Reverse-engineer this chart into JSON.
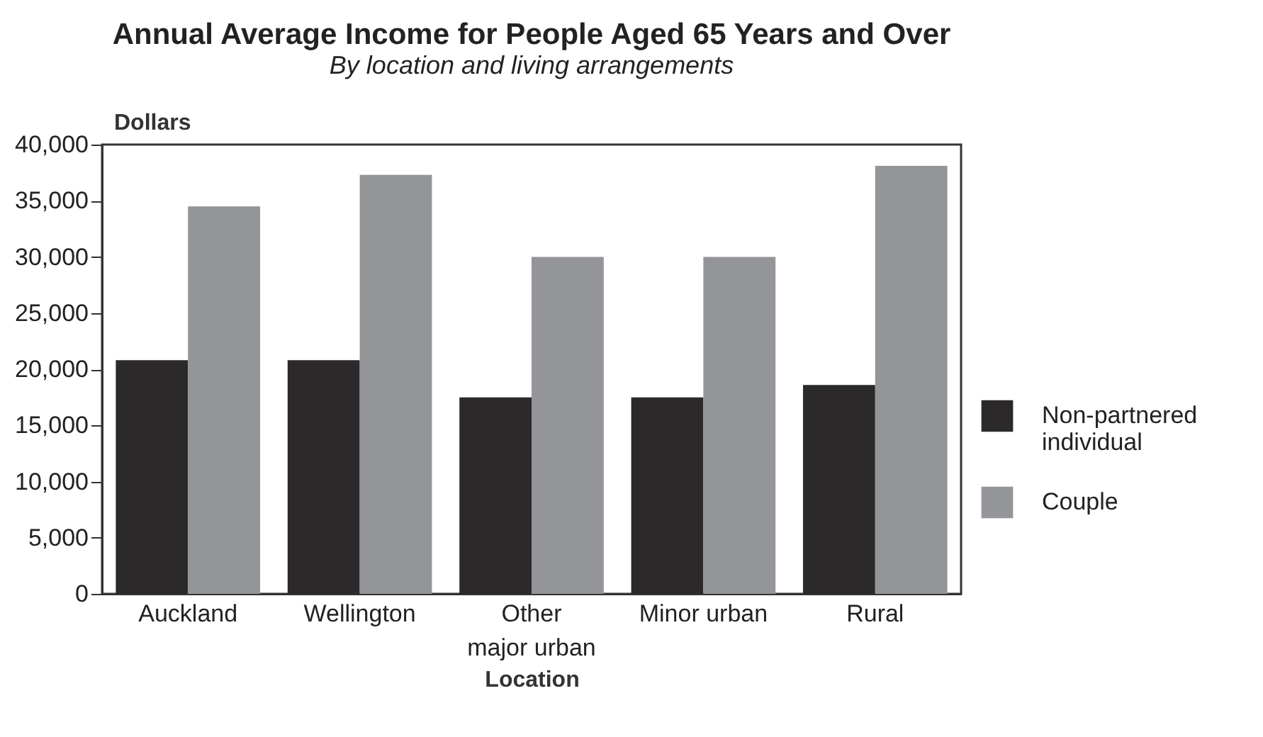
{
  "chart_data": {
    "type": "bar",
    "title": "Annual Average Income for People Aged 65 Years and Over",
    "subtitle": "By location and living arrangements",
    "xlabel": "Location",
    "ylabel": "Dollars",
    "categories": [
      "Auckland",
      "Wellington",
      "Other major urban",
      "Minor urban",
      "Rural"
    ],
    "series": [
      {
        "name": "Non-partnered individual",
        "color": "#2b292a",
        "values": [
          20800,
          20800,
          17500,
          17500,
          18600
        ]
      },
      {
        "name": "Couple",
        "color": "#939598",
        "values": [
          34500,
          37300,
          30000,
          30000,
          38100
        ]
      }
    ],
    "ylim": [
      0,
      40000
    ],
    "yticks": [
      0,
      {
        "value": 5000,
        "label": "5,000"
      },
      {
        "value": 10000,
        "label": "10,000"
      },
      {
        "value": 15000,
        "label": "15,000"
      },
      {
        "value": 20000,
        "label": "20,000"
      },
      {
        "value": 25000,
        "label": "25,000"
      },
      {
        "value": 30000,
        "label": "30,000"
      },
      {
        "value": 35000,
        "label": "35,000"
      },
      {
        "value": 40000,
        "label": "40,000"
      }
    ],
    "grid": false,
    "legend": "right"
  }
}
